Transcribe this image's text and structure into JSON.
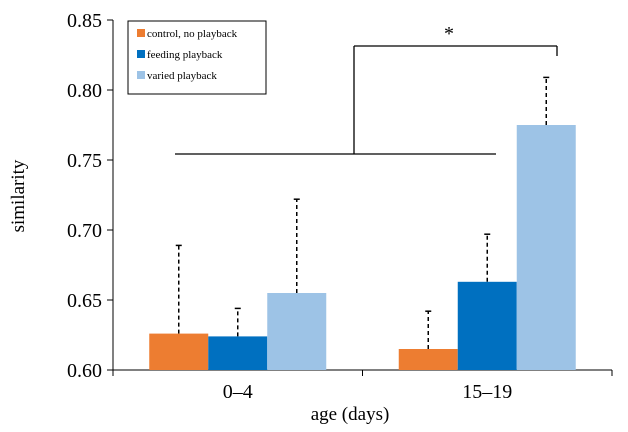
{
  "chart_data": {
    "type": "bar",
    "xlabel": "age (days)",
    "ylabel": "similarity",
    "ylim": [
      0.6,
      0.85
    ],
    "yticks": [
      "0.60",
      "0.65",
      "0.70",
      "0.75",
      "0.80",
      "0.85"
    ],
    "categories": [
      "0–4",
      "15–19"
    ],
    "series": [
      {
        "name": "control, no playback",
        "color": "#ED7D31",
        "values": [
          0.626,
          0.615
        ],
        "error_upper": [
          0.689,
          0.642
        ]
      },
      {
        "name": "feeding playback",
        "color": "#0070C0",
        "values": [
          0.624,
          0.663
        ],
        "error_upper": [
          0.644,
          0.697
        ]
      },
      {
        "name": "varied playback",
        "color": "#9DC3E6",
        "values": [
          0.655,
          0.775
        ],
        "error_upper": [
          0.722,
          0.809
        ]
      }
    ],
    "legend_position": "top-left",
    "grid": false,
    "annotation": {
      "text": "*",
      "comparison": "0–4 vs varied playback 15–19"
    }
  }
}
